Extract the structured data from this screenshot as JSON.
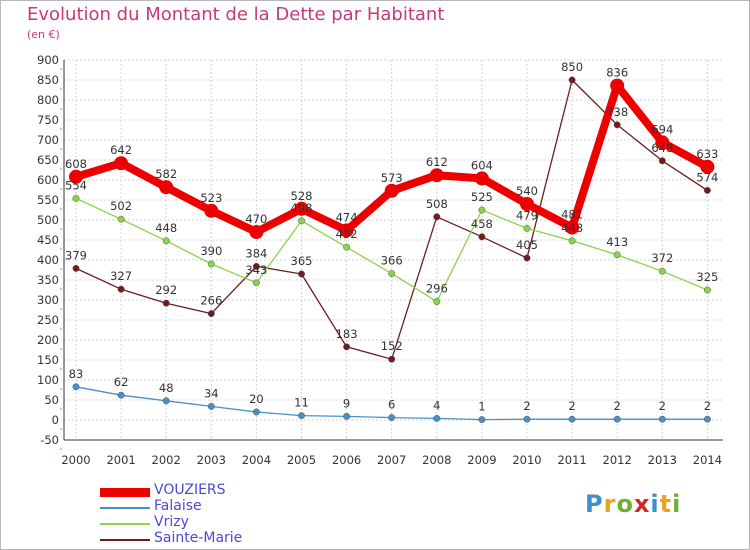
{
  "title": "Evolution du Montant de la Dette par Habitant",
  "unit": "(en €)",
  "logo": {
    "text": "Proxiti",
    "letters": [
      {
        "ch": "P",
        "color": "#3a8fd0"
      },
      {
        "ch": "r",
        "color": "#f0a020"
      },
      {
        "ch": "o",
        "color": "#70b030"
      },
      {
        "ch": "x",
        "color": "#d02828"
      },
      {
        "ch": "i",
        "color": "#3a8fd0"
      },
      {
        "ch": "t",
        "color": "#f0a020"
      },
      {
        "ch": "i",
        "color": "#70b030"
      }
    ]
  },
  "chart_data": {
    "type": "line",
    "title": "Evolution du Montant de la Dette par Habitant",
    "ylabel": "(en €)",
    "x": [
      "2000",
      "2001",
      "2002",
      "2003",
      "2004",
      "2005",
      "2006",
      "2007",
      "2008",
      "2009",
      "2010",
      "2011",
      "2012",
      "2013",
      "2014"
    ],
    "ylim": [
      -50,
      900
    ],
    "yticks": [
      -50,
      0,
      50,
      100,
      150,
      200,
      250,
      300,
      350,
      400,
      450,
      500,
      550,
      600,
      650,
      700,
      750,
      800,
      850,
      900
    ],
    "grid": true,
    "legend_position": "bottom-left",
    "series": [
      {
        "name": "VOUZIERS",
        "color": "#ee0000",
        "line_width": 8,
        "marker_r": 7,
        "label_color": "#333333",
        "values": [
          608,
          642,
          582,
          523,
          470,
          528,
          474,
          573,
          612,
          604,
          540,
          481,
          836,
          694,
          633
        ]
      },
      {
        "name": "Falaise",
        "color": "#4a90c8",
        "line_width": 1.3,
        "marker_r": 3.2,
        "label_color": "#333333",
        "values": [
          83,
          62,
          48,
          34,
          20,
          11,
          9,
          6,
          4,
          1,
          2,
          2,
          2,
          2,
          2
        ]
      },
      {
        "name": "Vrizy",
        "color": "#8bd44a",
        "line_width": 1.3,
        "marker_r": 3.2,
        "label_color": "#333333",
        "values": [
          554,
          502,
          448,
          390,
          343,
          498,
          432,
          366,
          296,
          525,
          479,
          448,
          413,
          372,
          325
        ]
      },
      {
        "name": "Sainte-Marie",
        "color": "#6e1c1c",
        "line_width": 1.3,
        "marker_r": 3.2,
        "label_color": "#333333",
        "values": [
          379,
          327,
          292,
          266,
          384,
          365,
          183,
          152,
          508,
          458,
          405,
          850,
          738,
          648,
          574
        ]
      }
    ]
  }
}
